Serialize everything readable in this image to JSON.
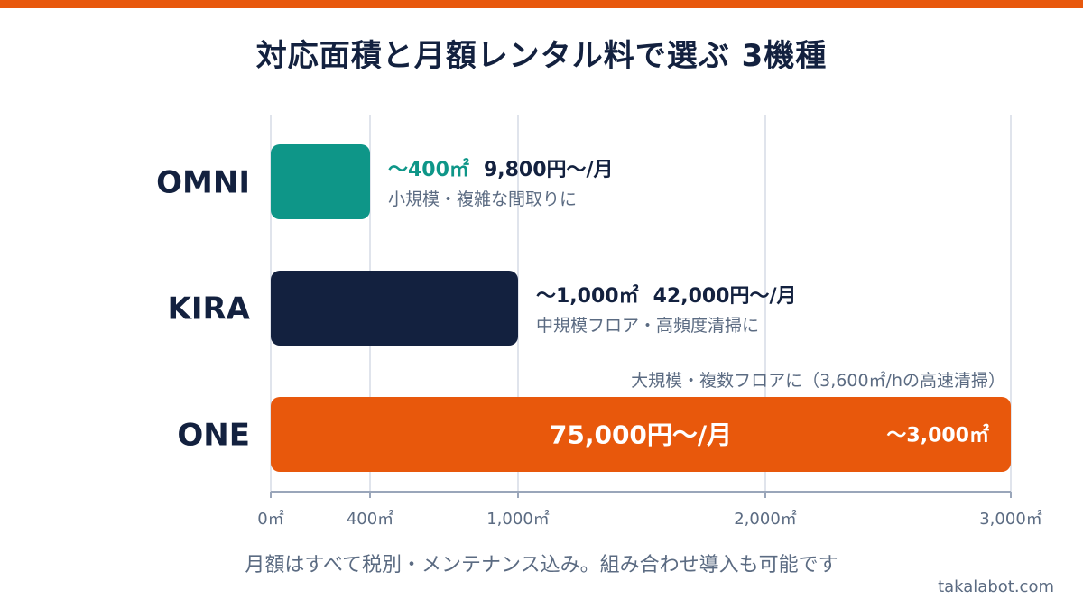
{
  "title": "対応面積と月額レンタル料で選ぶ 3機種",
  "footnote": "月額はすべて税別・メンテナンス込み。組み合わせ導入も可能です",
  "brand": "takalabot.com",
  "colors": {
    "omni": "#0e9688",
    "kira": "#13213f",
    "one": "#e8580c",
    "text_dark": "#13213f",
    "text_muted": "#5b6b82",
    "grid": "#d5dbe6",
    "axis": "#9aa6ba",
    "accent_bar": "#e8580c"
  },
  "chart_data": {
    "type": "bar",
    "orientation": "horizontal",
    "title": "対応面積と月額レンタル料で選ぶ 3機種",
    "xlabel": "",
    "ylabel": "",
    "xlim": [
      0,
      3000
    ],
    "x_scale": "piecewise",
    "ticks": [
      {
        "value": 0,
        "label": "0㎡"
      },
      {
        "value": 400,
        "label": "400㎡"
      },
      {
        "value": 1000,
        "label": "1,000㎡"
      },
      {
        "value": 2000,
        "label": "2,000㎡"
      },
      {
        "value": 3000,
        "label": "3,000㎡"
      }
    ],
    "grid": true,
    "categories": [
      "OMNI",
      "KIRA",
      "ONE"
    ],
    "values": [
      400,
      1000,
      3000
    ],
    "bars": [
      {
        "name": "OMNI",
        "value": 400,
        "area_label": "〜400㎡",
        "price_label": "9,800円〜/月",
        "note": "小規模・複雑な間取りに",
        "color": "#0e9688"
      },
      {
        "name": "KIRA",
        "value": 1000,
        "area_label": "〜1,000㎡",
        "price_label": "42,000円〜/月",
        "note": "中規模フロア・高頻度清掃に",
        "color": "#13213f"
      },
      {
        "name": "ONE",
        "value": 3000,
        "area_label": "〜3,000㎡",
        "price_label": "75,000円〜/月",
        "note": "大規模・複数フロアに（3,600㎡/hの高速清掃）",
        "color": "#e8580c"
      }
    ]
  }
}
